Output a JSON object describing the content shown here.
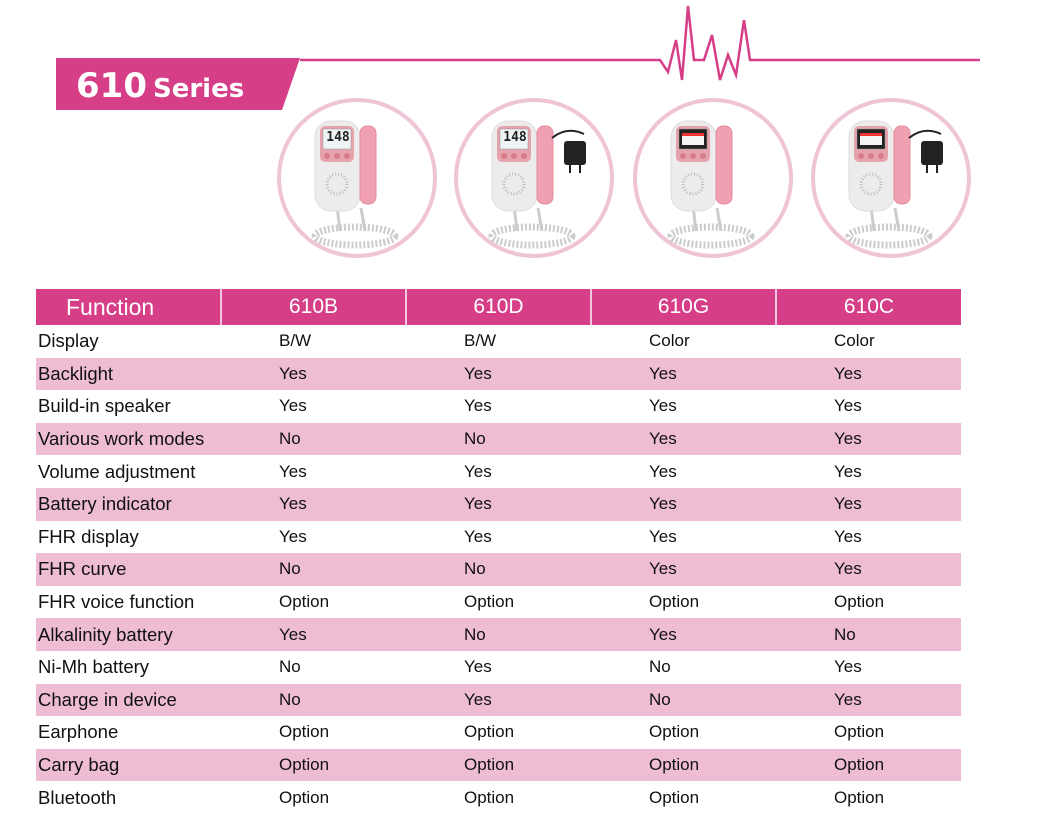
{
  "banner": {
    "number": "610",
    "word": "Series"
  },
  "colors": {
    "accent": "#d63f87",
    "row_pink": "#eebcd3",
    "circle": "#efc4d6"
  },
  "products": [
    {
      "model": "610B",
      "screen": "B/W",
      "screen_reading": "148",
      "charger": false
    },
    {
      "model": "610D",
      "screen": "B/W",
      "screen_reading": "148",
      "charger": true
    },
    {
      "model": "610G",
      "screen": "Color",
      "charger": false
    },
    {
      "model": "610C",
      "screen": "Color",
      "charger": true
    }
  ],
  "table": {
    "headers": [
      "Function",
      "610B",
      "610D",
      "610G",
      "610C"
    ],
    "rows": [
      [
        "Display",
        "B/W",
        "B/W",
        "Color",
        "Color"
      ],
      [
        "Backlight",
        "Yes",
        "Yes",
        "Yes",
        "Yes"
      ],
      [
        "Build-in speaker",
        "Yes",
        "Yes",
        "Yes",
        "Yes"
      ],
      [
        "Various work modes",
        "No",
        "No",
        "Yes",
        "Yes"
      ],
      [
        "Volume adjustment",
        "Yes",
        "Yes",
        "Yes",
        "Yes"
      ],
      [
        "Battery indicator",
        "Yes",
        "Yes",
        "Yes",
        "Yes"
      ],
      [
        "FHR display",
        "Yes",
        "Yes",
        "Yes",
        "Yes"
      ],
      [
        "FHR curve",
        "No",
        "No",
        "Yes",
        "Yes"
      ],
      [
        "FHR voice function",
        "Option",
        "Option",
        "Option",
        "Option"
      ],
      [
        "Alkalinity battery",
        "Yes",
        "No",
        "Yes",
        "No"
      ],
      [
        "Ni-Mh battery",
        "No",
        "Yes",
        "No",
        "Yes"
      ],
      [
        "Charge in device",
        "No",
        "Yes",
        "No",
        "Yes"
      ],
      [
        "Earphone",
        "Option",
        "Option",
        "Option",
        "Option"
      ],
      [
        "Carry bag",
        "Option",
        "Option",
        "Option",
        "Option"
      ],
      [
        "Bluetooth",
        "Option",
        "Option",
        "Option",
        "Option"
      ]
    ]
  }
}
